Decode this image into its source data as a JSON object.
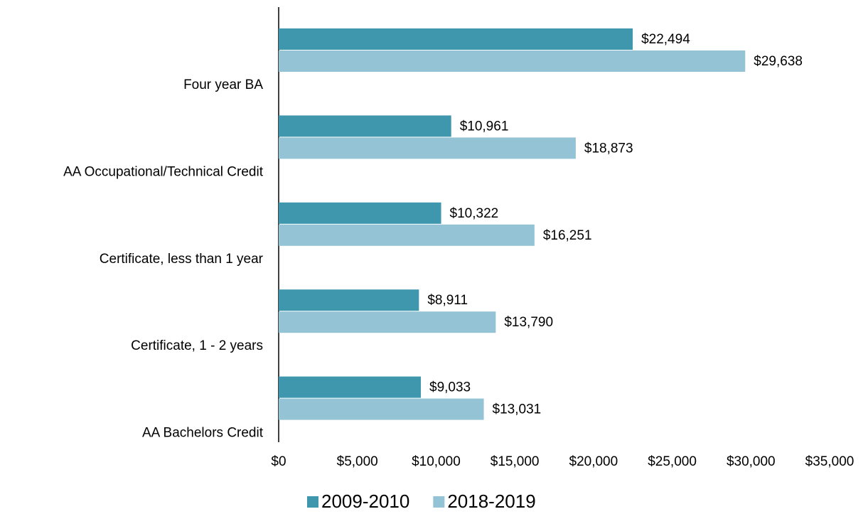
{
  "chart_data": {
    "type": "bar",
    "orientation": "horizontal",
    "categories": [
      "Four year BA",
      "AA Occupational/Technical Credit",
      "Certificate, less than 1 year",
      "Certificate, 1 - 2 years",
      "AA Bachelors Credit"
    ],
    "series": [
      {
        "name": "2009-2010",
        "color": "#3f97ad",
        "values": [
          22494,
          10961,
          10322,
          8911,
          9033
        ],
        "value_labels": [
          "$22,494",
          "$10,961",
          "$10,322",
          "$8,911",
          "$9,033"
        ]
      },
      {
        "name": "2018-2019",
        "color": "#93c3d4",
        "values": [
          29638,
          18873,
          16251,
          13790,
          13031
        ],
        "value_labels": [
          "$29,638",
          "$18,873",
          "$16,251",
          "$13,790",
          "$13,031"
        ]
      }
    ],
    "xlim": [
      0,
      35000
    ],
    "xticks": [
      {
        "value": 0,
        "label": "$0"
      },
      {
        "value": 5000,
        "label": "$5,000"
      },
      {
        "value": 10000,
        "label": "$10,000"
      },
      {
        "value": 15000,
        "label": "$15,000"
      },
      {
        "value": 20000,
        "label": "$20,000"
      },
      {
        "value": 25000,
        "label": "$25,000"
      },
      {
        "value": 30000,
        "label": "$30,000"
      },
      {
        "value": 35000,
        "label": "$35,000"
      }
    ],
    "grid": false,
    "legend": "bottom"
  }
}
